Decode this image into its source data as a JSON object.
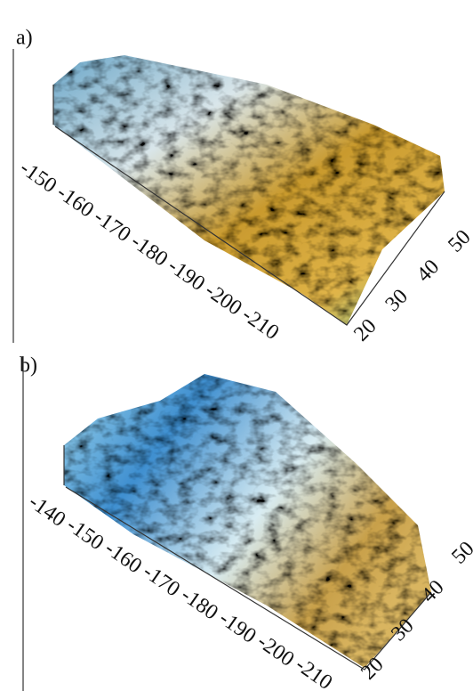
{
  "panels": [
    {
      "label": "a)",
      "left_ticks": [
        "-150",
        "-160",
        "-170",
        "-180",
        "-190",
        "-200",
        "-210"
      ],
      "right_ticks": [
        "20",
        "30",
        "40",
        "50"
      ]
    },
    {
      "label": "b)",
      "left_ticks": [
        "-140",
        "-150",
        "-160",
        "-170",
        "-180",
        "-190",
        "-200",
        "-210"
      ],
      "right_ticks": [
        "20",
        "30",
        "40",
        "50"
      ]
    }
  ]
}
